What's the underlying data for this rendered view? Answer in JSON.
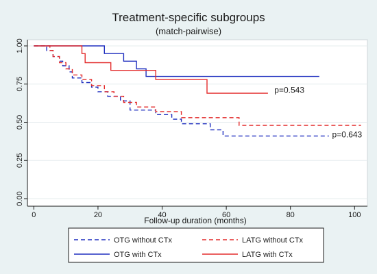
{
  "chart_data": {
    "type": "line",
    "title": "Treatment-specific subgroups",
    "subtitle": "(match-pairwise)",
    "xlabel": "Follow-up duration (months)",
    "ylabel": "",
    "xlim": [
      0,
      100
    ],
    "ylim": [
      0,
      1
    ],
    "x_ticks": [
      "0",
      "20",
      "40",
      "60",
      "80",
      "100"
    ],
    "y_ticks": [
      "0.00",
      "0.25",
      "0.50",
      "0.75",
      "1.00"
    ],
    "grid": "horizontal",
    "legend_position": "bottom",
    "annotations": [
      {
        "text": "p=0.543",
        "x": 75,
        "y": 0.71
      },
      {
        "text": "p=0.643",
        "x": 93,
        "y": 0.42
      }
    ],
    "series": [
      {
        "name": "OTG without CTx",
        "color": "#1f2fbf",
        "dash": true,
        "points": [
          [
            0,
            1.0
          ],
          [
            4,
            1.0
          ],
          [
            4,
            0.97
          ],
          [
            6,
            0.97
          ],
          [
            6,
            0.93
          ],
          [
            8,
            0.93
          ],
          [
            8,
            0.9
          ],
          [
            9,
            0.9
          ],
          [
            9,
            0.87
          ],
          [
            11,
            0.87
          ],
          [
            11,
            0.83
          ],
          [
            12,
            0.83
          ],
          [
            12,
            0.79
          ],
          [
            15,
            0.79
          ],
          [
            15,
            0.76
          ],
          [
            18,
            0.76
          ],
          [
            18,
            0.73
          ],
          [
            20,
            0.73
          ],
          [
            20,
            0.7
          ],
          [
            23,
            0.7
          ],
          [
            23,
            0.67
          ],
          [
            27,
            0.67
          ],
          [
            27,
            0.64
          ],
          [
            30,
            0.64
          ],
          [
            30,
            0.58
          ],
          [
            38,
            0.58
          ],
          [
            38,
            0.55
          ],
          [
            43,
            0.55
          ],
          [
            43,
            0.52
          ],
          [
            46,
            0.52
          ],
          [
            46,
            0.49
          ],
          [
            55,
            0.49
          ],
          [
            55,
            0.45
          ],
          [
            59,
            0.45
          ],
          [
            59,
            0.41
          ],
          [
            92,
            0.41
          ]
        ]
      },
      {
        "name": "LATG without CTx",
        "color": "#e32b2b",
        "dash": true,
        "points": [
          [
            0,
            1.0
          ],
          [
            5,
            1.0
          ],
          [
            5,
            0.97
          ],
          [
            6,
            0.97
          ],
          [
            6,
            0.93
          ],
          [
            8,
            0.93
          ],
          [
            8,
            0.89
          ],
          [
            10,
            0.89
          ],
          [
            10,
            0.85
          ],
          [
            12,
            0.85
          ],
          [
            12,
            0.81
          ],
          [
            15,
            0.81
          ],
          [
            15,
            0.78
          ],
          [
            18,
            0.78
          ],
          [
            18,
            0.74
          ],
          [
            22,
            0.74
          ],
          [
            22,
            0.7
          ],
          [
            25,
            0.7
          ],
          [
            25,
            0.67
          ],
          [
            28,
            0.67
          ],
          [
            28,
            0.63
          ],
          [
            32,
            0.63
          ],
          [
            32,
            0.6
          ],
          [
            38,
            0.6
          ],
          [
            38,
            0.57
          ],
          [
            46,
            0.57
          ],
          [
            46,
            0.53
          ],
          [
            64,
            0.53
          ],
          [
            64,
            0.48
          ],
          [
            102,
            0.48
          ]
        ]
      },
      {
        "name": "OTG with CTx",
        "color": "#1f2fbf",
        "dash": false,
        "points": [
          [
            0,
            1.0
          ],
          [
            22,
            1.0
          ],
          [
            22,
            0.95
          ],
          [
            28,
            0.95
          ],
          [
            28,
            0.9
          ],
          [
            32,
            0.9
          ],
          [
            32,
            0.85
          ],
          [
            35,
            0.85
          ],
          [
            35,
            0.8
          ],
          [
            89,
            0.8
          ]
        ]
      },
      {
        "name": "LATG with CTx",
        "color": "#e32b2b",
        "dash": false,
        "points": [
          [
            0,
            1.0
          ],
          [
            15,
            1.0
          ],
          [
            15,
            0.95
          ],
          [
            16,
            0.95
          ],
          [
            16,
            0.89
          ],
          [
            24,
            0.89
          ],
          [
            24,
            0.84
          ],
          [
            38,
            0.84
          ],
          [
            38,
            0.78
          ],
          [
            54,
            0.78
          ],
          [
            54,
            0.69
          ],
          [
            73,
            0.69
          ]
        ]
      }
    ],
    "legend": [
      {
        "label": "OTG without CTx",
        "series": 0
      },
      {
        "label": "LATG without CTx",
        "series": 1
      },
      {
        "label": "OTG with CTx",
        "series": 2
      },
      {
        "label": "LATG with CTx",
        "series": 3
      }
    ]
  }
}
